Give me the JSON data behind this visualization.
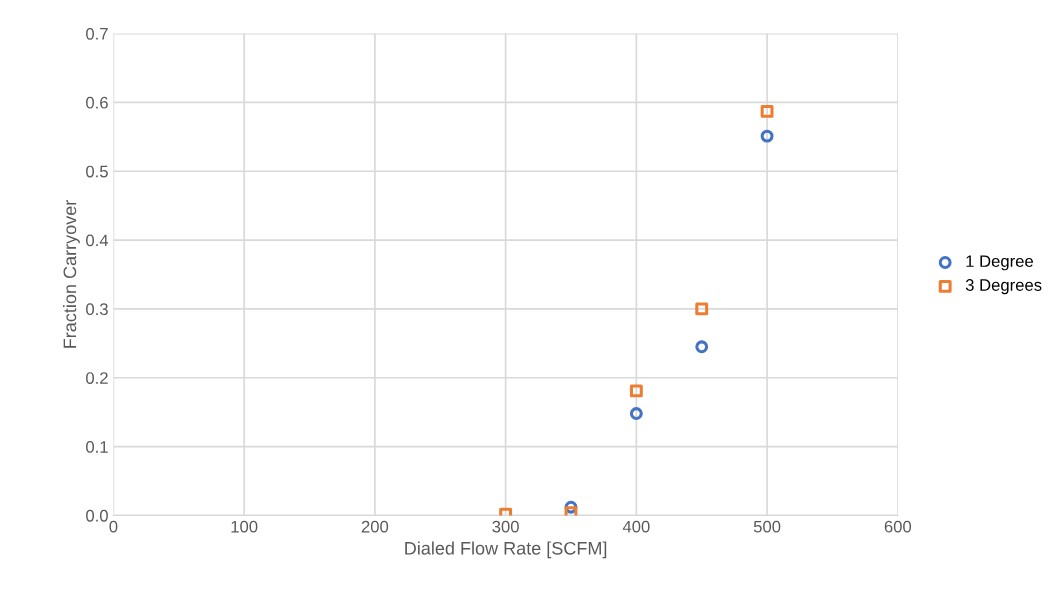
{
  "chart_data": {
    "type": "scatter",
    "xlabel": "Dialed Flow Rate [SCFM]",
    "ylabel": "Fraction Carryover",
    "x": [
      300,
      350,
      400,
      450,
      500
    ],
    "series": [
      {
        "name": "1 Degree",
        "color": "#4472c4",
        "marker": "circle",
        "values": [
          null,
          0.012,
          0.148,
          0.245,
          0.551
        ]
      },
      {
        "name": "3 Degrees",
        "color": "#ed7d31",
        "marker": "square",
        "values": [
          0.002,
          0.004,
          0.181,
          0.3,
          0.587
        ]
      }
    ],
    "xlim": [
      0,
      600
    ],
    "xticks": [
      0,
      100,
      200,
      300,
      400,
      500,
      600
    ],
    "ylim": [
      0,
      0.7
    ],
    "yticks": [
      {
        "value": 0,
        "label": "0.0"
      },
      0.1,
      0.2,
      0.3,
      0.4,
      0.5,
      0.6,
      0.7
    ],
    "grid": true,
    "legend": "right"
  }
}
